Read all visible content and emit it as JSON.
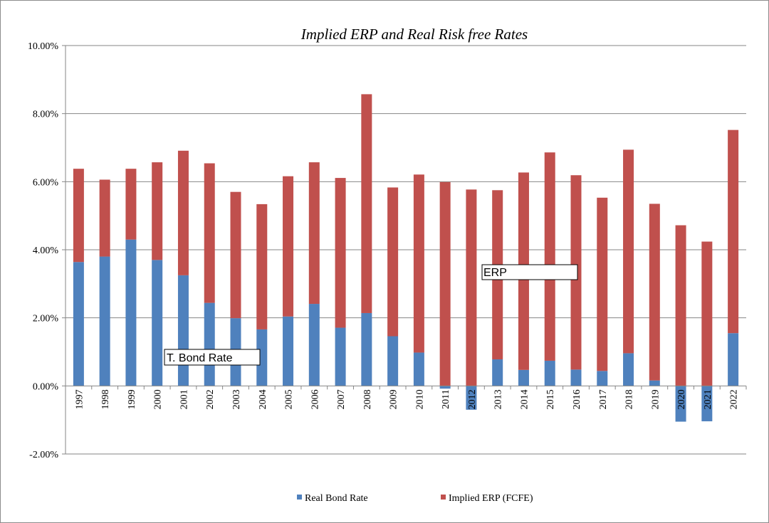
{
  "colors": {
    "real_bond": "#4f81bd",
    "implied_erp": "#c0504d",
    "grid": "#868686",
    "axis": "#868686"
  },
  "chart_data": {
    "type": "bar",
    "stacked": true,
    "title": "Implied ERP and Real Risk free Rates",
    "xlabel": "",
    "ylabel": "",
    "ylim": [
      -0.02,
      0.1
    ],
    "ytick_values": [
      -0.02,
      0,
      0.02,
      0.04,
      0.06,
      0.08,
      0.1
    ],
    "ytick_labels": [
      "-2.00%",
      "0.00%",
      "2.00%",
      "4.00%",
      "6.00%",
      "8.00%",
      "10.00%"
    ],
    "grid": true,
    "legend_position": "bottom",
    "categories": [
      "1997",
      "1998",
      "1999",
      "2000",
      "2001",
      "2002",
      "2003",
      "2004",
      "2005",
      "2006",
      "2007",
      "2008",
      "2009",
      "2010",
      "2011",
      "2012",
      "2013",
      "2014",
      "2015",
      "2016",
      "2017",
      "2018",
      "2019",
      "2020",
      "2021",
      "2022"
    ],
    "series": [
      {
        "name": "Real Bond Rate",
        "values": [
          0.0364,
          0.038,
          0.043,
          0.037,
          0.0325,
          0.0244,
          0.0199,
          0.0166,
          0.0204,
          0.0241,
          0.0171,
          0.0214,
          0.0146,
          0.0098,
          -0.0008,
          -0.007,
          0.0078,
          0.0047,
          0.0074,
          0.0048,
          0.0044,
          0.0096,
          0.0016,
          -0.0105,
          -0.0104,
          0.0155
        ]
      },
      {
        "name": "Implied ERP (FCFE)",
        "values": [
          0.0274,
          0.0226,
          0.0208,
          0.0287,
          0.0366,
          0.041,
          0.0371,
          0.0368,
          0.0412,
          0.0416,
          0.044,
          0.0643,
          0.0437,
          0.0523,
          0.0599,
          0.0577,
          0.0497,
          0.058,
          0.0612,
          0.0571,
          0.0509,
          0.0598,
          0.0519,
          0.0472,
          0.0424,
          0.0597
        ]
      }
    ],
    "annotations": [
      {
        "text": "T. Bond Rate"
      },
      {
        "text": "ERP"
      }
    ]
  }
}
